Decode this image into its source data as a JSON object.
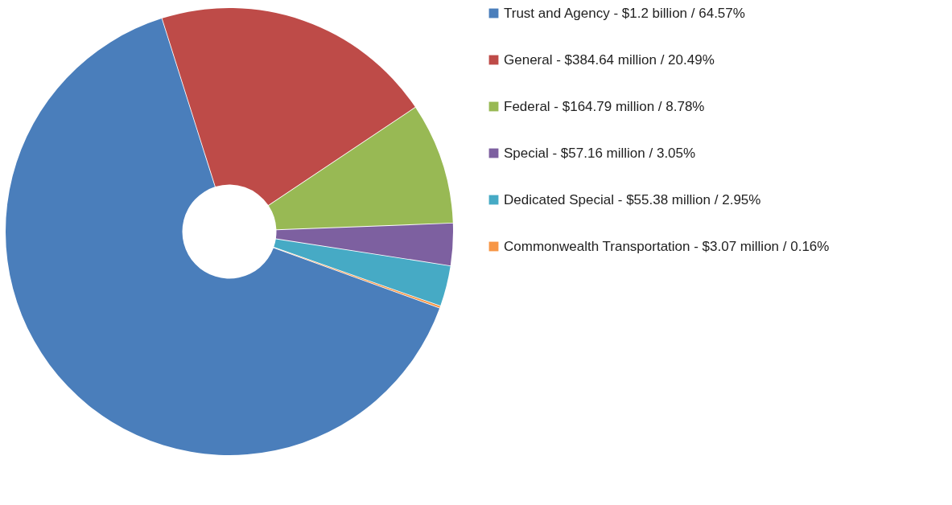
{
  "chart_data": {
    "type": "donut",
    "categories": [
      "Trust and Agency - $1.2 billion / 64.57%",
      "General - $384.64 million / 20.49%",
      "Federal - $164.79 million / 8.78%",
      "Special - $57.16 million / 3.05%",
      "Dedicated Special - $55.38 million / 2.95%",
      "Commonwealth Transportation - $3.07 million / 0.16%"
    ],
    "values": [
      64.57,
      20.49,
      8.78,
      3.05,
      2.95,
      0.16
    ],
    "colors": [
      "#4a7ebb",
      "#be4b48",
      "#98b954",
      "#7d60a0",
      "#46aac5",
      "#f79646"
    ],
    "legend": "right"
  }
}
